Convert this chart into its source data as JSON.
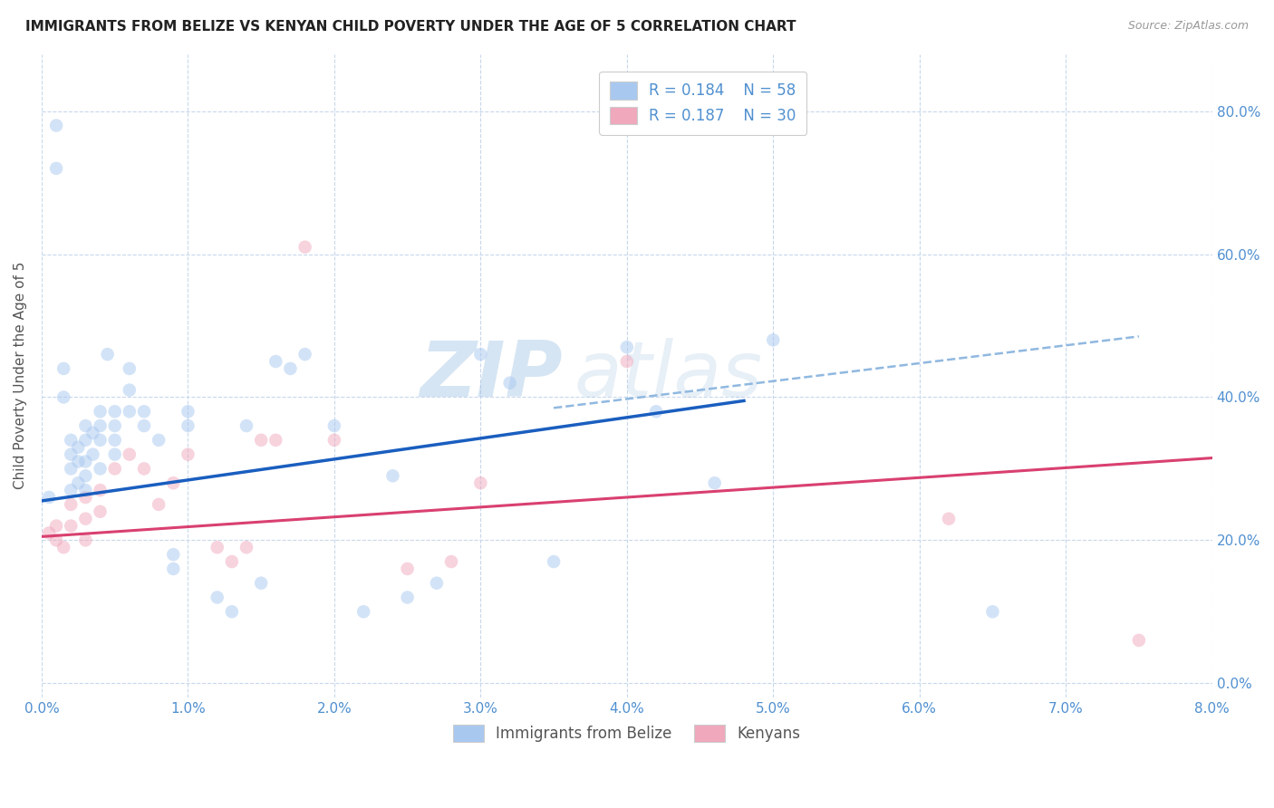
{
  "title": "IMMIGRANTS FROM BELIZE VS KENYAN CHILD POVERTY UNDER THE AGE OF 5 CORRELATION CHART",
  "source": "Source: ZipAtlas.com",
  "ylabel": "Child Poverty Under the Age of 5",
  "legend_labels": [
    "Immigrants from Belize",
    "Kenyans"
  ],
  "legend_r": [
    "R = 0.184",
    "R = 0.187"
  ],
  "legend_n": [
    "N = 58",
    "N = 30"
  ],
  "blue_scatter_color": "#A8C8F0",
  "pink_scatter_color": "#F0A8BC",
  "blue_line_color": "#1A5EBF",
  "pink_line_color": "#D94070",
  "dashed_line_color": "#90B8E0",
  "tick_color": "#5090D0",
  "xlim": [
    0.0,
    0.08
  ],
  "ylim": [
    -0.02,
    0.88
  ],
  "xticks": [
    0.0,
    0.01,
    0.02,
    0.03,
    0.04,
    0.05,
    0.06,
    0.07,
    0.08
  ],
  "xtick_labels": [
    "0.0%",
    "1.0%",
    "2.0%",
    "3.0%",
    "4.0%",
    "5.0%",
    "6.0%",
    "7.0%",
    "8.0%"
  ],
  "yticks": [
    0.0,
    0.2,
    0.4,
    0.6,
    0.8
  ],
  "ytick_labels": [
    "0.0%",
    "20.0%",
    "40.0%",
    "60.0%",
    "80.0%"
  ],
  "blue_x": [
    0.0005,
    0.001,
    0.001,
    0.0015,
    0.0015,
    0.002,
    0.002,
    0.002,
    0.002,
    0.0025,
    0.0025,
    0.0025,
    0.003,
    0.003,
    0.003,
    0.003,
    0.003,
    0.0035,
    0.0035,
    0.004,
    0.004,
    0.004,
    0.004,
    0.0045,
    0.005,
    0.005,
    0.005,
    0.005,
    0.006,
    0.006,
    0.006,
    0.007,
    0.007,
    0.008,
    0.009,
    0.009,
    0.01,
    0.01,
    0.012,
    0.013,
    0.014,
    0.015,
    0.016,
    0.017,
    0.018,
    0.02,
    0.022,
    0.024,
    0.025,
    0.027,
    0.03,
    0.032,
    0.035,
    0.04,
    0.042,
    0.046,
    0.05,
    0.065
  ],
  "blue_y": [
    0.26,
    0.78,
    0.72,
    0.44,
    0.4,
    0.34,
    0.32,
    0.3,
    0.27,
    0.33,
    0.31,
    0.28,
    0.36,
    0.34,
    0.31,
    0.29,
    0.27,
    0.35,
    0.32,
    0.38,
    0.36,
    0.34,
    0.3,
    0.46,
    0.38,
    0.36,
    0.34,
    0.32,
    0.44,
    0.41,
    0.38,
    0.38,
    0.36,
    0.34,
    0.18,
    0.16,
    0.38,
    0.36,
    0.12,
    0.1,
    0.36,
    0.14,
    0.45,
    0.44,
    0.46,
    0.36,
    0.1,
    0.29,
    0.12,
    0.14,
    0.46,
    0.42,
    0.17,
    0.47,
    0.38,
    0.28,
    0.48,
    0.1
  ],
  "pink_x": [
    0.0005,
    0.001,
    0.001,
    0.0015,
    0.002,
    0.002,
    0.003,
    0.003,
    0.003,
    0.004,
    0.004,
    0.005,
    0.006,
    0.007,
    0.008,
    0.009,
    0.01,
    0.012,
    0.013,
    0.014,
    0.015,
    0.016,
    0.018,
    0.02,
    0.025,
    0.028,
    0.03,
    0.04,
    0.062,
    0.075
  ],
  "pink_y": [
    0.21,
    0.22,
    0.2,
    0.19,
    0.25,
    0.22,
    0.26,
    0.23,
    0.2,
    0.27,
    0.24,
    0.3,
    0.32,
    0.3,
    0.25,
    0.28,
    0.32,
    0.19,
    0.17,
    0.19,
    0.34,
    0.34,
    0.61,
    0.34,
    0.16,
    0.17,
    0.28,
    0.45,
    0.23,
    0.06
  ],
  "blue_trend_x": [
    0.0,
    0.048
  ],
  "blue_trend_y": [
    0.255,
    0.395
  ],
  "pink_trend_x": [
    0.0,
    0.08
  ],
  "pink_trend_y": [
    0.205,
    0.315
  ],
  "dashed_trend_x": [
    0.035,
    0.075
  ],
  "dashed_trend_y": [
    0.385,
    0.485
  ],
  "watermark_zip": "ZIP",
  "watermark_atlas": "atlas",
  "background_color": "#FFFFFF",
  "grid_color": "#C8D8EC",
  "marker_size": 110,
  "marker_alpha": 0.5
}
